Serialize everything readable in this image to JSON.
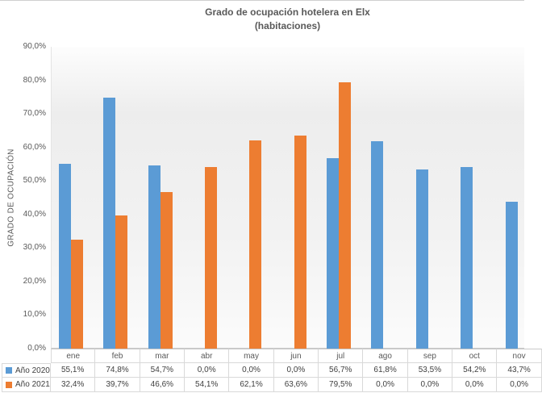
{
  "title": {
    "line1": "Grado de ocupación hotelera en Elx",
    "line2": "(habitaciones)"
  },
  "y_axis": {
    "title": "GRADO DE OCUPACIÓN",
    "tick_labels": [
      "90,0%",
      "80,0%",
      "70,0%",
      "60,0%",
      "50,0%",
      "40,0%",
      "30,0%",
      "20,0%",
      "10,0%",
      "0,0%"
    ]
  },
  "chart_data": {
    "type": "bar",
    "title": "Grado de ocupación hotelera en Elx (habitaciones)",
    "xlabel": "",
    "ylabel": "GRADO DE OCUPACIÓN",
    "ylim": [
      0,
      90
    ],
    "y_tick_step": 10,
    "grid": false,
    "legend_position": "table-bottom-left",
    "categories": [
      "ene",
      "feb",
      "mar",
      "abr",
      "may",
      "jun",
      "jul",
      "ago",
      "sep",
      "oct",
      "nov"
    ],
    "series": [
      {
        "name": "Año 2020",
        "color": "#5B9BD5",
        "values": [
          55.1,
          74.8,
          54.7,
          0.0,
          0.0,
          0.0,
          56.7,
          61.8,
          53.5,
          54.2,
          43.7
        ],
        "labels": [
          "55,1%",
          "74,8%",
          "54,7%",
          "0,0%",
          "0,0%",
          "0,0%",
          "56,7%",
          "61,8%",
          "53,5%",
          "54,2%",
          "43,7%"
        ]
      },
      {
        "name": "Año 2021",
        "color": "#ED7D31",
        "values": [
          32.4,
          39.7,
          46.6,
          54.1,
          62.1,
          63.6,
          79.5,
          0.0,
          0.0,
          0.0,
          0.0
        ],
        "labels": [
          "32,4%",
          "39,7%",
          "46,6%",
          "54,1%",
          "62,1%",
          "63,6%",
          "79,5%",
          "0,0%",
          "0,0%",
          "0,0%",
          "0,0%"
        ]
      }
    ]
  },
  "colors": {
    "bar_2020": "#5B9BD5",
    "bar_2021": "#ED7D31",
    "axis_text": "#595959",
    "table_text": "#404040",
    "table_border": "#D9D9D9"
  }
}
